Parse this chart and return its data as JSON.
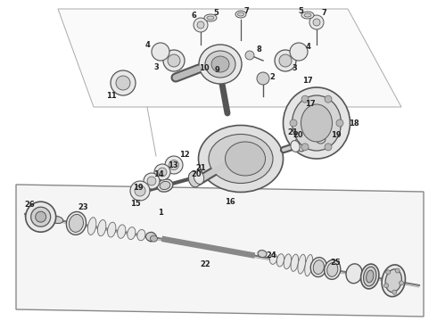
{
  "bg_color": "#ffffff",
  "lc": "#555555",
  "fig_width": 4.9,
  "fig_height": 3.6,
  "dpi": 100
}
